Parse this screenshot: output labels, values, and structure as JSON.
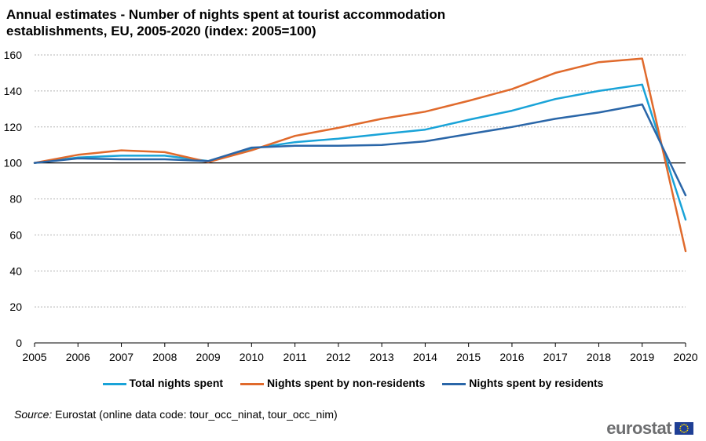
{
  "chart_data": {
    "type": "line",
    "title": "Annual estimates - Number of nights spent at tourist accommodation",
    "title_line2": "establishments, EU, 2005-2020 (index: 2005=100)",
    "categories": [
      "2005",
      "2006",
      "2007",
      "2008",
      "2009",
      "2010",
      "2011",
      "2012",
      "2013",
      "2014",
      "2015",
      "2016",
      "2017",
      "2018",
      "2019",
      "2020"
    ],
    "ylim": [
      0,
      160
    ],
    "yticks": [
      0,
      20,
      40,
      60,
      80,
      100,
      120,
      140,
      160
    ],
    "grid": true,
    "legend_position": "bottom",
    "series": [
      {
        "name": "Total nights spent",
        "color": "#19a3d8",
        "values": [
          100,
          103,
          104,
          104,
          101,
          108,
          111.5,
          113.5,
          116,
          118.5,
          124,
          129,
          135.5,
          140,
          143.5,
          68.5
        ]
      },
      {
        "name": "Nights spent by non-residents",
        "color": "#e06a2c",
        "values": [
          100,
          104.5,
          107,
          106,
          100.5,
          107,
          115,
          119.5,
          124.5,
          128.5,
          134.5,
          141,
          150,
          156,
          158,
          51
        ]
      },
      {
        "name": "Nights spent by residents",
        "color": "#2a66a8",
        "values": [
          100,
          102.5,
          102,
          102,
          101,
          108.5,
          109.5,
          109.5,
          110,
          112,
          116,
          120,
          124.5,
          128,
          132.5,
          82
        ]
      }
    ]
  },
  "source": {
    "label": "Source:",
    "text": "Eurostat (online data code: tour_occ_ninat,  tour_occ_nim)"
  },
  "logo": {
    "text": "eurostat",
    "icon": "eu-flag-icon"
  }
}
